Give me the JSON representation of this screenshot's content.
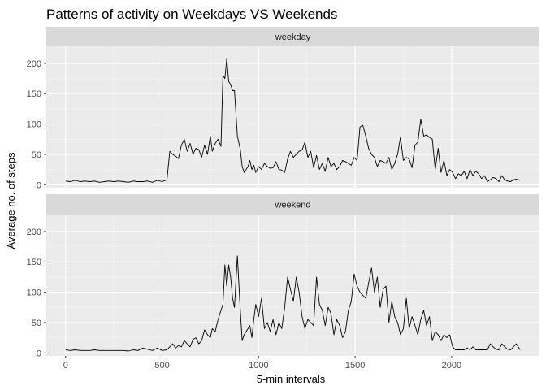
{
  "chart_data": {
    "type": "line",
    "title": "Patterns of activity on Weekdays VS Weekends",
    "xlabel": "5-min intervals",
    "ylabel": "Average no. of steps",
    "xlim": [
      -100,
      2455
    ],
    "ylim": [
      -5,
      228
    ],
    "x_ticks": [
      0,
      500,
      1000,
      1500,
      2000
    ],
    "y_ticks": [
      0,
      50,
      100,
      150,
      200
    ],
    "grid": true,
    "line_color": "#000000",
    "panel_background": "#ebebeb",
    "strip_background": "#d9d9d9",
    "panels": [
      {
        "label": "weekday",
        "series": {
          "x": [
            0,
            25,
            50,
            75,
            100,
            125,
            150,
            175,
            200,
            225,
            250,
            275,
            300,
            325,
            350,
            375,
            400,
            425,
            450,
            475,
            500,
            525,
            540,
            555,
            570,
            585,
            600,
            615,
            630,
            645,
            660,
            675,
            690,
            705,
            720,
            735,
            750,
            760,
            775,
            790,
            805,
            815,
            825,
            835,
            845,
            855,
            865,
            875,
            890,
            905,
            915,
            925,
            935,
            945,
            955,
            965,
            975,
            985,
            1000,
            1015,
            1030,
            1045,
            1060,
            1075,
            1090,
            1105,
            1120,
            1135,
            1150,
            1165,
            1180,
            1195,
            1210,
            1225,
            1240,
            1255,
            1270,
            1285,
            1300,
            1315,
            1330,
            1345,
            1360,
            1375,
            1390,
            1405,
            1420,
            1435,
            1450,
            1465,
            1480,
            1495,
            1510,
            1525,
            1540,
            1555,
            1570,
            1585,
            1600,
            1615,
            1630,
            1645,
            1660,
            1675,
            1690,
            1705,
            1720,
            1735,
            1750,
            1765,
            1780,
            1795,
            1810,
            1825,
            1840,
            1855,
            1870,
            1885,
            1900,
            1915,
            1930,
            1945,
            1960,
            1975,
            1990,
            2005,
            2020,
            2035,
            2050,
            2065,
            2080,
            2095,
            2110,
            2125,
            2140,
            2155,
            2170,
            2185,
            2200,
            2215,
            2230,
            2245,
            2260,
            2275,
            2290,
            2305,
            2320,
            2335,
            2355
          ],
          "y": [
            6,
            5,
            7,
            5,
            6,
            5,
            6,
            4,
            5,
            6,
            5,
            6,
            5,
            4,
            6,
            5,
            5,
            6,
            4,
            7,
            5,
            8,
            55,
            50,
            47,
            43,
            65,
            75,
            55,
            68,
            50,
            60,
            58,
            45,
            65,
            50,
            80,
            55,
            68,
            75,
            63,
            180,
            175,
            208,
            170,
            165,
            155,
            155,
            80,
            58,
            30,
            20,
            25,
            30,
            40,
            25,
            32,
            20,
            30,
            25,
            35,
            30,
            27,
            28,
            38,
            25,
            24,
            20,
            42,
            55,
            45,
            50,
            55,
            57,
            70,
            45,
            55,
            28,
            48,
            25,
            35,
            22,
            45,
            30,
            35,
            25,
            30,
            40,
            38,
            35,
            32,
            45,
            40,
            95,
            98,
            80,
            60,
            50,
            45,
            30,
            40,
            38,
            35,
            45,
            25,
            35,
            50,
            78,
            40,
            45,
            42,
            28,
            65,
            70,
            108,
            80,
            82,
            78,
            75,
            25,
            60,
            20,
            40,
            15,
            25,
            20,
            10,
            18,
            15,
            22,
            10,
            25,
            15,
            22,
            18,
            10,
            15,
            5,
            8,
            12,
            10,
            5,
            15,
            8,
            6,
            5,
            8,
            9,
            7
          ]
        }
      },
      {
        "label": "weekend",
        "series": {
          "x": [
            0,
            25,
            50,
            75,
            100,
            125,
            150,
            175,
            200,
            225,
            250,
            275,
            300,
            325,
            350,
            375,
            400,
            425,
            450,
            475,
            500,
            525,
            540,
            555,
            570,
            585,
            600,
            615,
            630,
            645,
            660,
            675,
            690,
            705,
            720,
            735,
            750,
            760,
            775,
            790,
            805,
            815,
            825,
            835,
            845,
            855,
            865,
            875,
            890,
            905,
            915,
            925,
            935,
            945,
            955,
            965,
            975,
            985,
            1000,
            1015,
            1030,
            1045,
            1060,
            1075,
            1090,
            1105,
            1120,
            1135,
            1150,
            1165,
            1180,
            1195,
            1210,
            1225,
            1240,
            1255,
            1270,
            1285,
            1300,
            1315,
            1330,
            1345,
            1360,
            1375,
            1390,
            1405,
            1420,
            1435,
            1450,
            1465,
            1480,
            1495,
            1510,
            1525,
            1540,
            1555,
            1570,
            1585,
            1600,
            1615,
            1630,
            1645,
            1660,
            1675,
            1690,
            1705,
            1720,
            1735,
            1750,
            1765,
            1780,
            1795,
            1810,
            1825,
            1840,
            1855,
            1870,
            1885,
            1900,
            1915,
            1930,
            1945,
            1960,
            1975,
            1990,
            2005,
            2020,
            2035,
            2050,
            2065,
            2080,
            2095,
            2110,
            2125,
            2140,
            2155,
            2170,
            2185,
            2200,
            2215,
            2230,
            2245,
            2260,
            2275,
            2290,
            2305,
            2320,
            2335,
            2355
          ],
          "y": [
            5,
            4,
            5,
            4,
            4,
            4,
            5,
            4,
            4,
            4,
            4,
            4,
            4,
            3,
            5,
            4,
            8,
            6,
            4,
            8,
            4,
            5,
            10,
            15,
            8,
            12,
            10,
            20,
            15,
            10,
            22,
            25,
            15,
            20,
            38,
            30,
            25,
            40,
            35,
            55,
            70,
            80,
            145,
            110,
            145,
            125,
            90,
            75,
            160,
            70,
            20,
            30,
            35,
            40,
            45,
            25,
            55,
            80,
            60,
            90,
            40,
            50,
            35,
            55,
            30,
            50,
            40,
            75,
            125,
            105,
            85,
            125,
            100,
            60,
            40,
            55,
            50,
            45,
            125,
            80,
            70,
            45,
            75,
            65,
            30,
            55,
            45,
            25,
            35,
            70,
            85,
            130,
            110,
            100,
            95,
            90,
            115,
            140,
            100,
            125,
            75,
            105,
            110,
            50,
            85,
            60,
            50,
            30,
            40,
            90,
            40,
            60,
            45,
            30,
            55,
            70,
            45,
            60,
            20,
            35,
            30,
            20,
            30,
            25,
            30,
            10,
            5,
            5,
            5,
            5,
            8,
            5,
            10,
            5,
            5,
            5,
            5,
            5,
            15,
            10,
            6,
            5,
            15,
            10,
            6,
            5,
            10,
            15,
            5
          ]
        }
      }
    ]
  }
}
